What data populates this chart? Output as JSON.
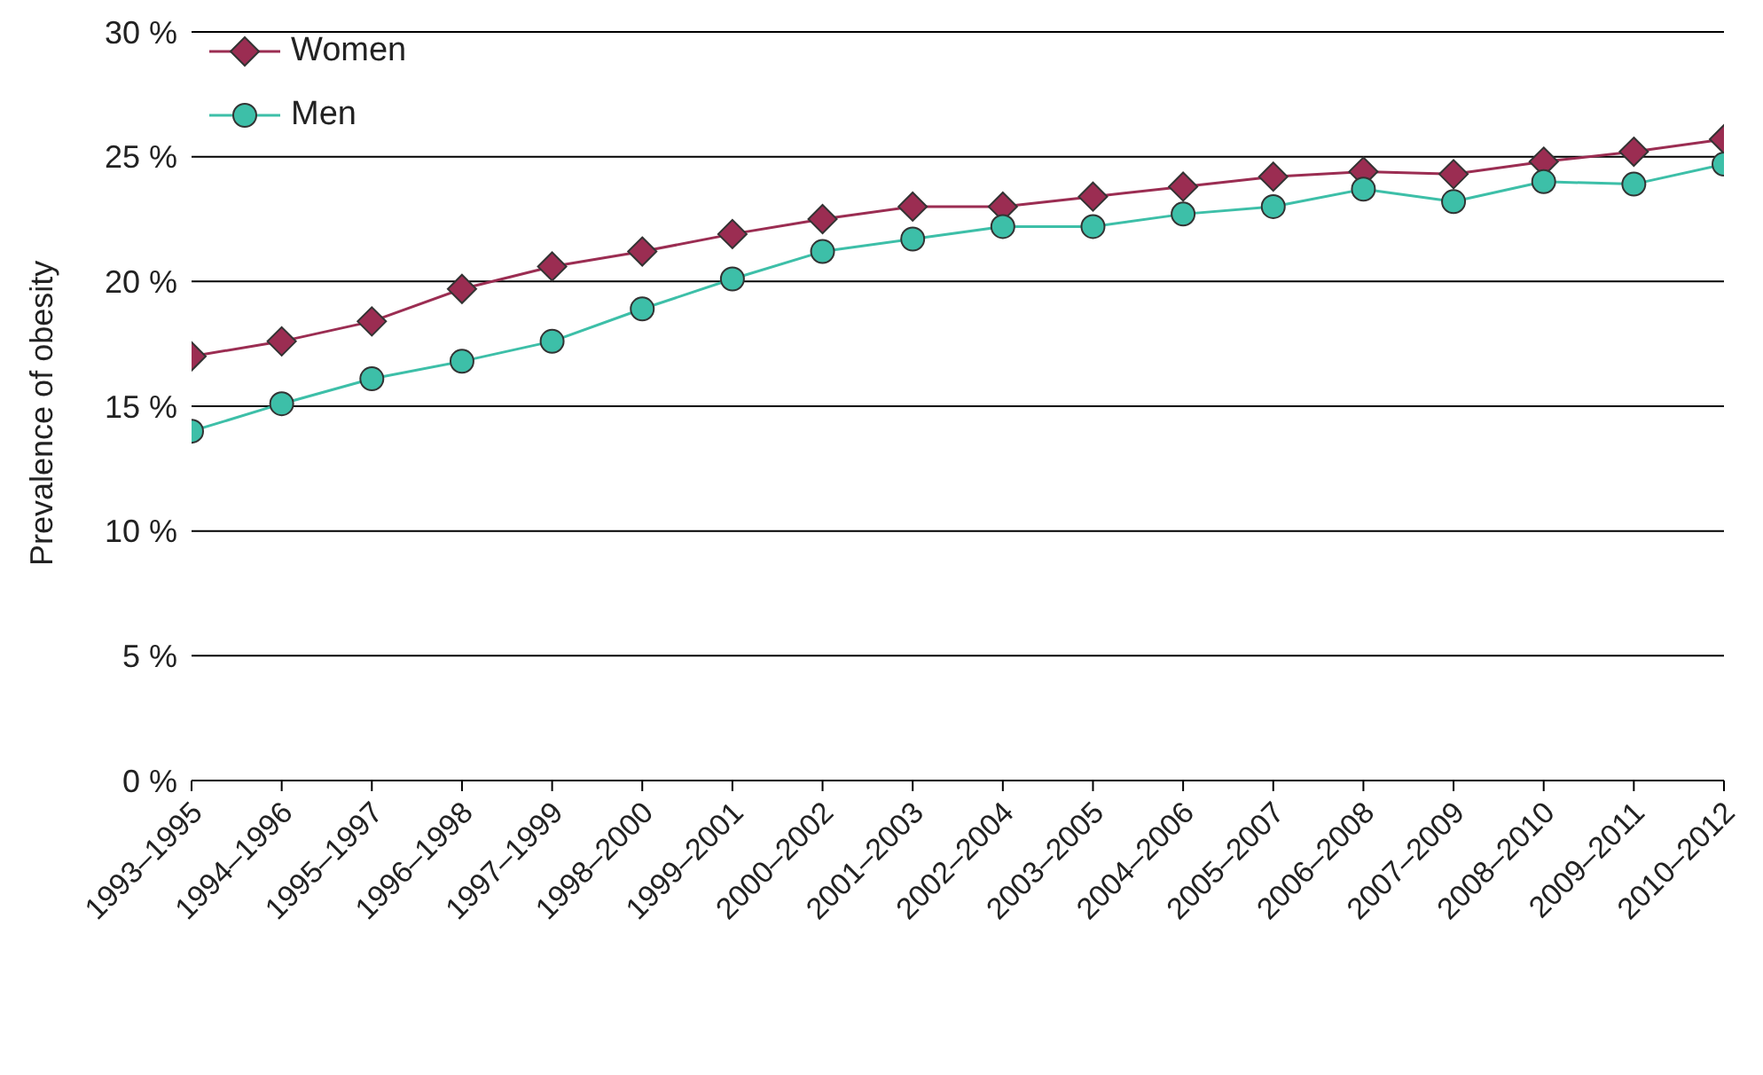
{
  "chart_data": {
    "type": "line",
    "ylabel": "Prevalence of obesity",
    "categories": [
      "1993–1995",
      "1994–1996",
      "1995–1997",
      "1996–1998",
      "1997–1999",
      "1998–2000",
      "1999–2001",
      "2000–2002",
      "2001–2003",
      "2002–2004",
      "2003–2005",
      "2004–2006",
      "2005–2007",
      "2006–2008",
      "2007–2009",
      "2008–2010",
      "2009–2011",
      "2010–2012"
    ],
    "series": [
      {
        "name": "Women",
        "color": "#9b2d52",
        "marker": "diamond",
        "values": [
          17.0,
          17.6,
          18.4,
          19.7,
          20.6,
          21.2,
          21.9,
          22.5,
          23.0,
          23.0,
          23.4,
          23.8,
          24.2,
          24.4,
          24.3,
          24.8,
          25.2,
          25.7
        ]
      },
      {
        "name": "Men",
        "color": "#3dbfa8",
        "marker": "circle",
        "values": [
          14.0,
          15.1,
          16.1,
          16.8,
          17.6,
          18.9,
          20.1,
          21.2,
          21.7,
          22.2,
          22.2,
          22.7,
          23.0,
          23.7,
          23.2,
          24.0,
          23.9,
          24.7
        ]
      }
    ],
    "ylim": [
      0,
      30
    ],
    "yticks": [
      {
        "value": 0,
        "label": "0 %"
      },
      {
        "value": 5,
        "label": "5 %"
      },
      {
        "value": 10,
        "label": "10 %"
      },
      {
        "value": 15,
        "label": "15 %"
      },
      {
        "value": 20,
        "label": "20 %"
      },
      {
        "value": 25,
        "label": "25 %"
      },
      {
        "value": 30,
        "label": "30 %"
      }
    ],
    "grid": "y",
    "legend": "top left",
    "line_style": "solid"
  }
}
